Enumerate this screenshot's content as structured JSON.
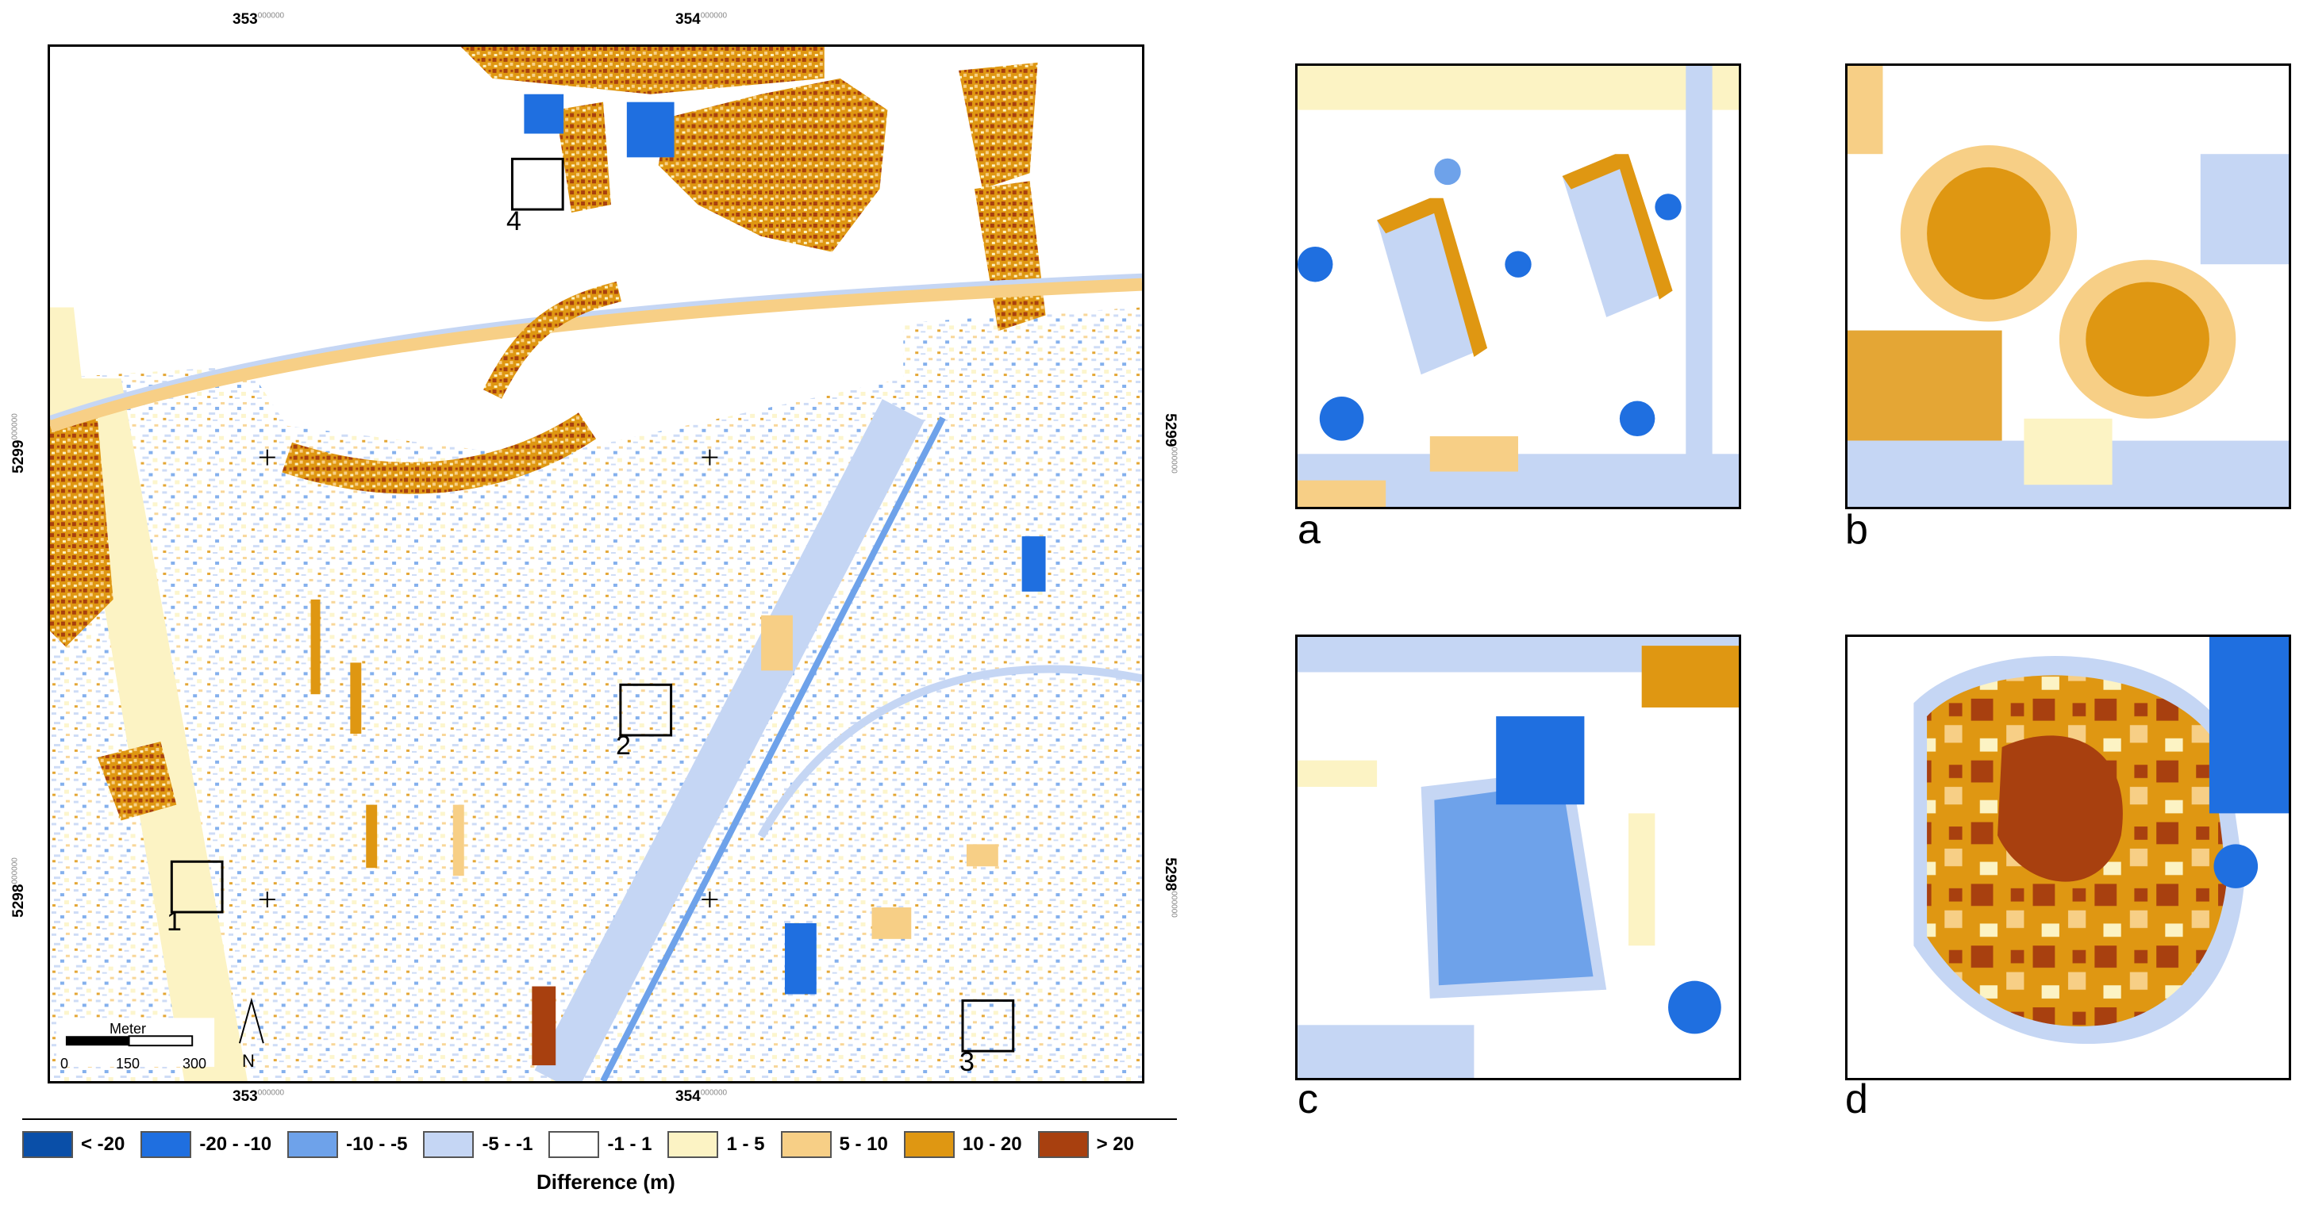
{
  "main_map": {
    "top_ticks": [
      "353",
      "354"
    ],
    "bottom_ticks": [
      "353",
      "354"
    ],
    "left_ticks": [
      "5299",
      "5298"
    ],
    "right_ticks": [
      "5299",
      "5298"
    ],
    "tick_suffix": "000000",
    "boxes": [
      "1",
      "2",
      "3",
      "4"
    ]
  },
  "scalebar": {
    "unit": "Meter",
    "labels": [
      "0",
      "150",
      "300"
    ]
  },
  "north_arrow": {
    "label": "N"
  },
  "insets": [
    {
      "label": "a"
    },
    {
      "label": "b"
    },
    {
      "label": "c"
    },
    {
      "label": "d"
    }
  ],
  "legend": {
    "title": "Difference (m)",
    "classes": [
      {
        "label": "< -20",
        "color": "#0a4fa8"
      },
      {
        "label": "-20 - -10",
        "color": "#1f6fe0"
      },
      {
        "label": "-10 - -5",
        "color": "#6ea2ea"
      },
      {
        "label": "-5 - -1",
        "color": "#c5d6f4"
      },
      {
        "label": "-1 - 1",
        "color": "#ffffff"
      },
      {
        "label": "1 - 5",
        "color": "#fcf3c4"
      },
      {
        "label": "5 - 10",
        "color": "#f7cf86"
      },
      {
        "label": "10 - 20",
        "color": "#df9712"
      },
      {
        "label": "> 20",
        "color": "#a8400f"
      }
    ]
  }
}
